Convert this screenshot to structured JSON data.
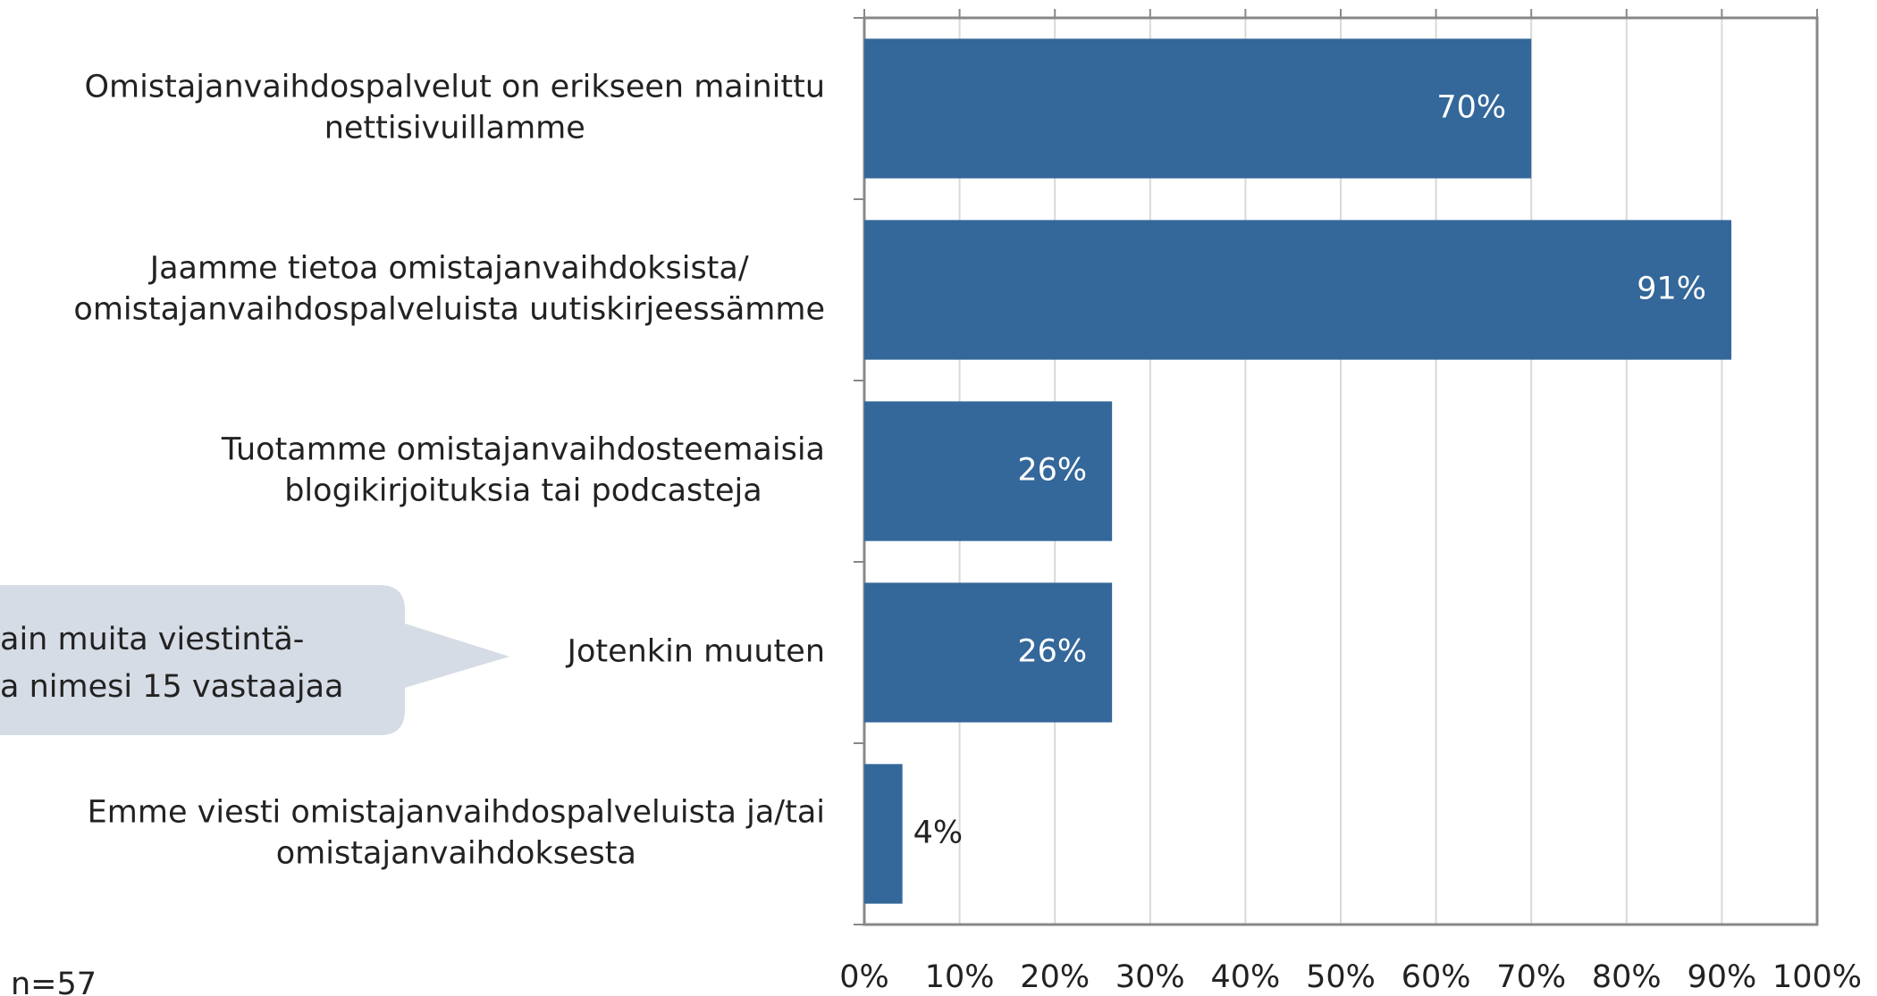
{
  "chart_data": {
    "type": "barh",
    "categories": [
      [
        "Omistajanvaihdospalvelut on erikseen mainittu",
        "nettisivuillamme"
      ],
      [
        "Jaamme tietoa omistajanvaihdoksista/",
        "omistajanvaihdospalveluista uutiskirjeessämme"
      ],
      [
        "Tuotamme omistajanvaihdosteemaisia",
        "blogikirjoituksia tai podcasteja"
      ],
      [
        "Jotenkin muuten"
      ],
      [
        "Emme viesti omistajanvaihdospalveluista ja/tai",
        "omistajanvaihdoksesta"
      ]
    ],
    "values": [
      70,
      91,
      26,
      26,
      4
    ],
    "value_labels": [
      "70%",
      "91%",
      "26%",
      "26%",
      "4%"
    ],
    "color": "#34679a",
    "xlim": [
      0,
      100
    ],
    "xticks": [
      {
        "value": 0,
        "label": "0%"
      },
      {
        "value": 10,
        "label": "10%"
      },
      {
        "value": 20,
        "label": "20%"
      },
      {
        "value": 30,
        "label": "30%"
      },
      {
        "value": 40,
        "label": "40%"
      },
      {
        "value": 50,
        "label": "50%"
      },
      {
        "value": 60,
        "label": "60%"
      },
      {
        "value": 70,
        "label": "70%"
      },
      {
        "value": 80,
        "label": "80%"
      },
      {
        "value": 90,
        "label": "90%"
      },
      {
        "value": 100,
        "label": "100%"
      }
    ],
    "grid": true,
    "annotations": [
      [
        "ain muita viestintä-",
        "a nimesi 15 vastaajaa"
      ],
      "n=57"
    ]
  }
}
